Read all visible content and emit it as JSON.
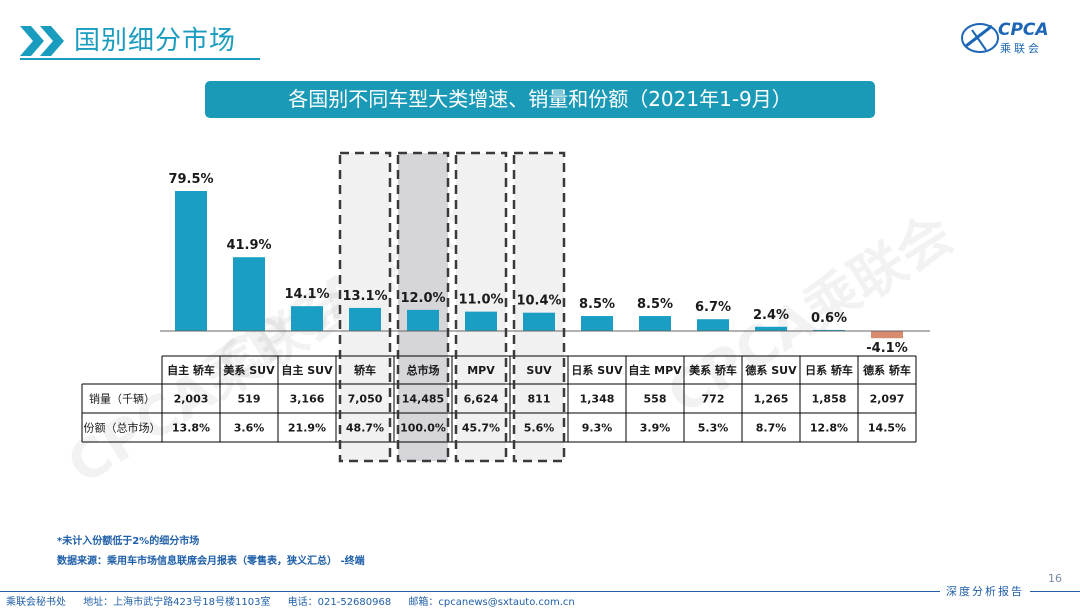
{
  "header": {
    "title": "国别细分市场"
  },
  "logo": {
    "brand": "CPCA",
    "sub": "乘联会"
  },
  "banner": {
    "title": "各国别不同车型大类增速、销量和份额（2021年1-9月）"
  },
  "watermark": "CPCA乘联会",
  "chart_data": {
    "type": "bar",
    "title": "各国别不同车型大类增速、销量和份额（2021年1-9月）",
    "categories": [
      "自主 轿车",
      "美系 SUV",
      "自主 SUV",
      "轿车",
      "总市场",
      "MPV",
      "SUV",
      "日系 SUV",
      "自主 MPV",
      "美系 轿车",
      "德系 SUV",
      "日系 轿车",
      "德系 轿车"
    ],
    "values": [
      79.5,
      41.9,
      14.1,
      13.1,
      12.0,
      11.0,
      10.4,
      8.5,
      8.5,
      6.7,
      2.4,
      0.6,
      -4.1
    ],
    "value_labels": [
      "79.5%",
      "41.9%",
      "14.1%",
      "13.1%",
      "12.0%",
      "11.0%",
      "10.4%",
      "8.5%",
      "8.5%",
      "6.7%",
      "2.4%",
      "0.6%",
      "-4.1%"
    ],
    "highlighted": [
      "轿车",
      "总市场",
      "MPV",
      "SUV"
    ],
    "ylim": [
      -6,
      85
    ],
    "colors": {
      "positive": "#1b9ec4",
      "negative": "#d98b6e",
      "highlight_fill": "#f1f1f1",
      "total_fill": "#d6d6da",
      "border": "#3a3a3a"
    },
    "table": {
      "rows": [
        {
          "label": "销量（千辆）",
          "values": [
            "2,003",
            "519",
            "3,166",
            "7,050",
            "14,485",
            "6,624",
            "811",
            "1,348",
            "558",
            "772",
            "1,265",
            "1,858",
            "2,097"
          ]
        },
        {
          "label": "份额（总市场）",
          "values": [
            "13.8%",
            "3.6%",
            "21.9%",
            "48.7%",
            "100.0%",
            "45.7%",
            "5.6%",
            "9.3%",
            "3.9%",
            "5.3%",
            "8.7%",
            "12.8%",
            "14.5%"
          ]
        }
      ]
    }
  },
  "notes": {
    "note1": "*未计入份额低于2%的细分市场",
    "note2": "数据来源：乘用车市场信息联席会月报表（零售表，狭义汇总）  -终端"
  },
  "footer": {
    "org": "乘联会秘书处",
    "address": "地址：上海市武宁路423号18号楼1103室",
    "phone": "电话：021-52680968",
    "email": "邮箱：cpcanews@sxtauto.com.cn",
    "tag": "深度分析报告",
    "page": "16"
  }
}
